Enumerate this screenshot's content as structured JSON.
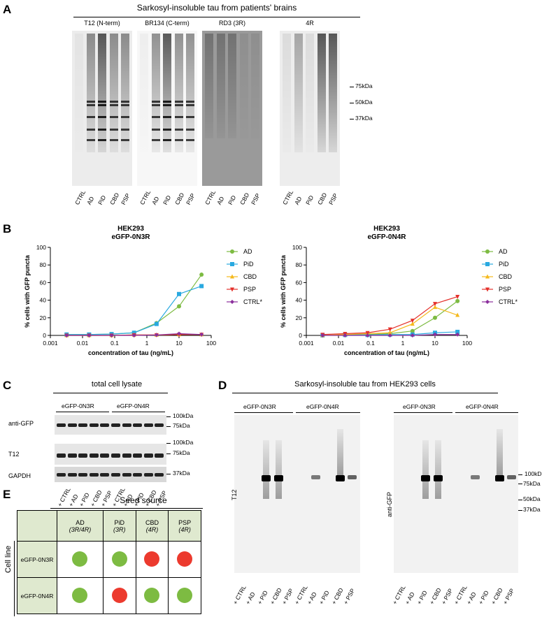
{
  "panel_letters": {
    "a": "A",
    "b": "B",
    "c": "C",
    "d": "D",
    "e": "E"
  },
  "panel_a": {
    "header": "Sarkosyl-insoluble tau from patients' brains",
    "blots": [
      {
        "title": "T12 (N-term)",
        "lanes": [
          "CTRL",
          "AD",
          "PiD",
          "CBD",
          "PSP"
        ]
      },
      {
        "title": "BR134 (C-term)",
        "lanes": [
          "CTRL",
          "AD",
          "PiD",
          "CBD",
          "PSP"
        ]
      },
      {
        "title": "RD3 (3R)",
        "lanes": [
          "CTRL",
          "AD",
          "PiD",
          "CBD",
          "PSP"
        ]
      },
      {
        "title": "4R",
        "lanes": [
          "CTRL",
          "AD",
          "PiD",
          "CBD",
          "PSP"
        ]
      }
    ],
    "mw": [
      "75kDa",
      "50kDa",
      "37kDa"
    ]
  },
  "chart_data": [
    {
      "type": "line",
      "title": "HEK293",
      "subtitle": "eGFP-0N3R",
      "xlabel": "concentration of tau (ng/mL)",
      "ylabel": "% cells with GFP puncta",
      "xscale": "log",
      "xlim": [
        0.001,
        100
      ],
      "ylim": [
        0,
        100
      ],
      "xticks": [
        "0.001",
        "0.01",
        "0.1",
        "1",
        "10",
        "100"
      ],
      "yticks": [
        "0",
        "20",
        "40",
        "60",
        "80",
        "100"
      ],
      "x": [
        0.0032,
        0.016,
        0.08,
        0.4,
        2,
        10,
        50
      ],
      "series": [
        {
          "name": "AD",
          "color": "#7dbb42",
          "marker": "circle",
          "values": [
            1,
            1,
            1.5,
            3,
            14,
            33,
            69
          ]
        },
        {
          "name": "PiD",
          "color": "#29a9e0",
          "marker": "square",
          "values": [
            1,
            1,
            1.5,
            3,
            13,
            47,
            56
          ]
        },
        {
          "name": "CBD",
          "color": "#f5b91c",
          "marker": "triangle-up",
          "values": [
            0,
            0,
            0,
            0.5,
            0.5,
            1,
            1
          ]
        },
        {
          "name": "PSP",
          "color": "#e4302a",
          "marker": "triangle-down",
          "values": [
            0,
            0,
            0,
            0.5,
            0.5,
            1,
            1
          ]
        },
        {
          "name": "CTRL*",
          "color": "#8b2f9c",
          "marker": "diamond",
          "values": [
            0,
            0,
            0,
            0,
            0.5,
            2,
            1
          ]
        }
      ],
      "legend": "right"
    },
    {
      "type": "line",
      "title": "HEK293",
      "subtitle": "eGFP-0N4R",
      "xlabel": "concentration of tau (ng/mL)",
      "ylabel": "% cells with GFP puncta",
      "xscale": "log",
      "xlim": [
        0.001,
        100
      ],
      "ylim": [
        0,
        100
      ],
      "xticks": [
        "0.001",
        "0.01",
        "0.1",
        "1",
        "10",
        "100"
      ],
      "yticks": [
        "0",
        "20",
        "40",
        "60",
        "80",
        "100"
      ],
      "x": [
        0.0032,
        0.016,
        0.08,
        0.4,
        2,
        10,
        50
      ],
      "series": [
        {
          "name": "AD",
          "color": "#7dbb42",
          "marker": "circle",
          "values": [
            0,
            0.5,
            1,
            2,
            5,
            20,
            39
          ]
        },
        {
          "name": "PiD",
          "color": "#29a9e0",
          "marker": "square",
          "values": [
            0,
            0.5,
            0.5,
            1,
            1,
            3,
            4
          ]
        },
        {
          "name": "CBD",
          "color": "#f5b91c",
          "marker": "triangle-up",
          "values": [
            0,
            1,
            2,
            3,
            13,
            32,
            23
          ]
        },
        {
          "name": "PSP",
          "color": "#e4302a",
          "marker": "triangle-down",
          "values": [
            1,
            2,
            3,
            7,
            17,
            36,
            44
          ]
        },
        {
          "name": "CTRL*",
          "color": "#8b2f9c",
          "marker": "diamond",
          "values": [
            0,
            0,
            0,
            0,
            0,
            1,
            1
          ]
        }
      ],
      "legend": "right"
    }
  ],
  "panel_c": {
    "header": "total cell lysate",
    "groups": [
      "eGFP-0N3R",
      "eGFP-0N4R"
    ],
    "rows": [
      "anti-GFP",
      "T12",
      "GAPDH"
    ],
    "mw_gfp": [
      "100kDa",
      "75kDa"
    ],
    "mw_t12": [
      "100kDa",
      "75kDa"
    ],
    "mw_gapdh": [
      "37kDa"
    ],
    "lanes": [
      "+ CTRL",
      "+ AD",
      "+ PiD",
      "+ CBD",
      "+ PSP",
      "+ CTRL",
      "+ AD",
      "+ PiD",
      "+ CBD",
      "+ PSP"
    ]
  },
  "panel_d": {
    "header": "Sarkosyl-insoluble tau from HEK293 cells",
    "groups": [
      "eGFP-0N3R",
      "eGFP-0N4R"
    ],
    "blots": [
      "T12",
      "anti-GFP"
    ],
    "mw": [
      "100kDa",
      "75kDa",
      "50kDa",
      "37kDa"
    ],
    "lanes": [
      "+ CTRL",
      "+ AD",
      "+ PiD",
      "+ CBD",
      "+ PSP",
      "+ CTRL",
      "+ AD",
      "+ PiD",
      "+ CBD",
      "+ PSP"
    ]
  },
  "panel_e": {
    "header": "Seed source",
    "row_axis": "Cell line",
    "columns": [
      {
        "name": "AD",
        "sub": "(3R/4R)"
      },
      {
        "name": "PiD",
        "sub": "(3R)"
      },
      {
        "name": "CBD",
        "sub": "(4R)"
      },
      {
        "name": "PSP",
        "sub": "(4R)"
      }
    ],
    "rows": [
      {
        "name": "eGFP-0N3R",
        "results": [
          "positive",
          "positive",
          "negative",
          "negative"
        ]
      },
      {
        "name": "eGFP-0N4R",
        "results": [
          "positive",
          "negative",
          "positive",
          "positive"
        ]
      }
    ],
    "colors": {
      "positive": "#7dbb42",
      "negative": "#ec3a2e",
      "header_bg": "#dfe9cf"
    }
  }
}
